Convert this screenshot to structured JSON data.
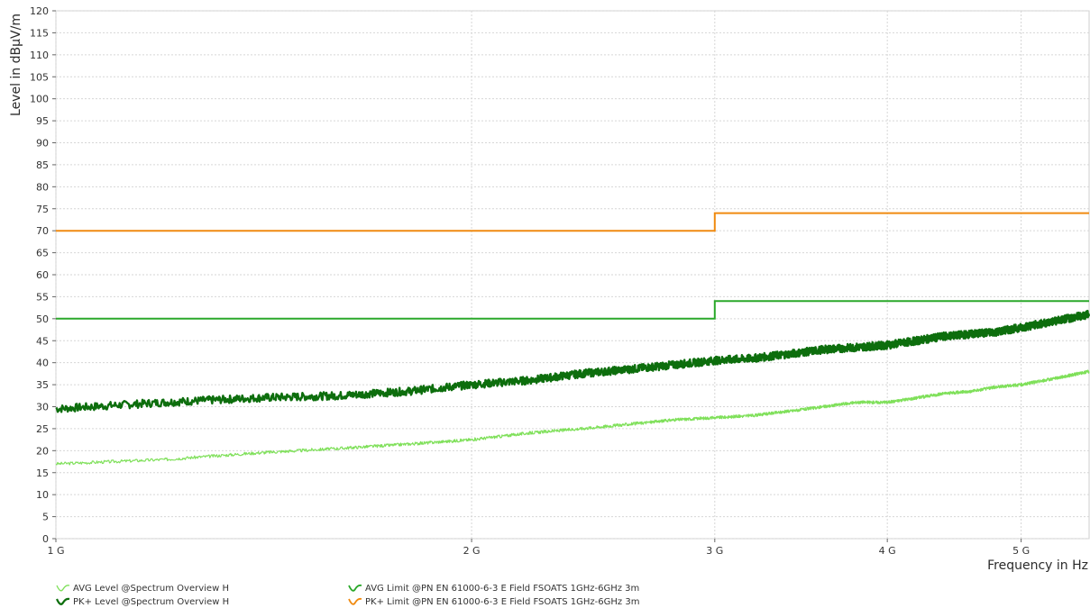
{
  "chart_data": {
    "type": "line",
    "title": "",
    "ylabel": "Level in dBµV/m",
    "xlabel": "Frequency in Hz",
    "x_scale": "log",
    "xlim": [
      1000000000,
      5600000000
    ],
    "ylim": [
      0,
      120
    ],
    "grid": true,
    "x_ticks": [
      {
        "value": 1000000000,
        "label": "1 G"
      },
      {
        "value": 2000000000,
        "label": "2 G"
      },
      {
        "value": 3000000000,
        "label": "3 G"
      },
      {
        "value": 4000000000,
        "label": "4 G"
      },
      {
        "value": 5000000000,
        "label": "5 G"
      }
    ],
    "y_ticks": [
      0,
      5,
      10,
      15,
      20,
      25,
      30,
      35,
      40,
      45,
      50,
      55,
      60,
      65,
      70,
      75,
      80,
      85,
      90,
      95,
      100,
      105,
      110,
      115,
      120
    ],
    "series": [
      {
        "name": "PK+ Limit @PN EN 61000-6-3 E Field  FSOATS 1GHz-6GHz 3m",
        "color": "#f08a10",
        "kind": "step",
        "x": [
          1000000000,
          3000000000,
          3000000000,
          5600000000
        ],
        "y": [
          70,
          70,
          74,
          74
        ]
      },
      {
        "name": "AVG Limit @PN EN 61000-6-3 E Field  FSOATS 1GHz-6GHz 3m",
        "color": "#2aa82a",
        "kind": "step",
        "x": [
          1000000000,
          3000000000,
          3000000000,
          5600000000
        ],
        "y": [
          50,
          50,
          54,
          54
        ]
      },
      {
        "name": "PK+ Level @Spectrum Overview H",
        "color": "#0d6e0d",
        "kind": "trace",
        "x": [
          1000000000,
          1200000000,
          1400000000,
          1600000000,
          1800000000,
          2000000000,
          2200000000,
          2400000000,
          2600000000,
          2800000000,
          3000000000,
          3200000000,
          3400000000,
          3600000000,
          3800000000,
          4000000000,
          4200000000,
          4400000000,
          4600000000,
          4800000000,
          5000000000,
          5200000000,
          5400000000,
          5600000000
        ],
        "y": [
          29.5,
          31,
          32,
          32.5,
          33.5,
          35,
          36,
          37.5,
          38.5,
          39.5,
          40.5,
          41,
          42,
          43,
          43.5,
          44,
          45,
          46,
          46.5,
          47,
          48,
          49,
          50,
          51
        ]
      },
      {
        "name": "AVG Level @Spectrum Overview H",
        "color": "#7fe05a",
        "kind": "trace",
        "x": [
          1000000000,
          1200000000,
          1400000000,
          1600000000,
          1800000000,
          2000000000,
          2200000000,
          2400000000,
          2600000000,
          2800000000,
          3000000000,
          3200000000,
          3400000000,
          3600000000,
          3800000000,
          4000000000,
          4200000000,
          4400000000,
          4600000000,
          4800000000,
          5000000000,
          5200000000,
          5400000000,
          5600000000
        ],
        "y": [
          17,
          18,
          19.5,
          20.5,
          21.5,
          22.5,
          24,
          25,
          26,
          27,
          27.5,
          28,
          29,
          30,
          31,
          31,
          32,
          33,
          33.5,
          34.5,
          35,
          36,
          37,
          38
        ]
      }
    ],
    "legend": [
      {
        "label": "AVG Level @Spectrum Overview H",
        "color": "#7fe05a"
      },
      {
        "label": "PK+ Level @Spectrum Overview H",
        "color": "#0d6e0d"
      },
      {
        "label": "AVG Limit @PN EN 61000-6-3 E Field  FSOATS 1GHz-6GHz 3m",
        "color": "#2aa82a"
      },
      {
        "label": "PK+ Limit @PN EN 61000-6-3 E Field  FSOATS 1GHz-6GHz 3m",
        "color": "#f08a10"
      }
    ]
  }
}
